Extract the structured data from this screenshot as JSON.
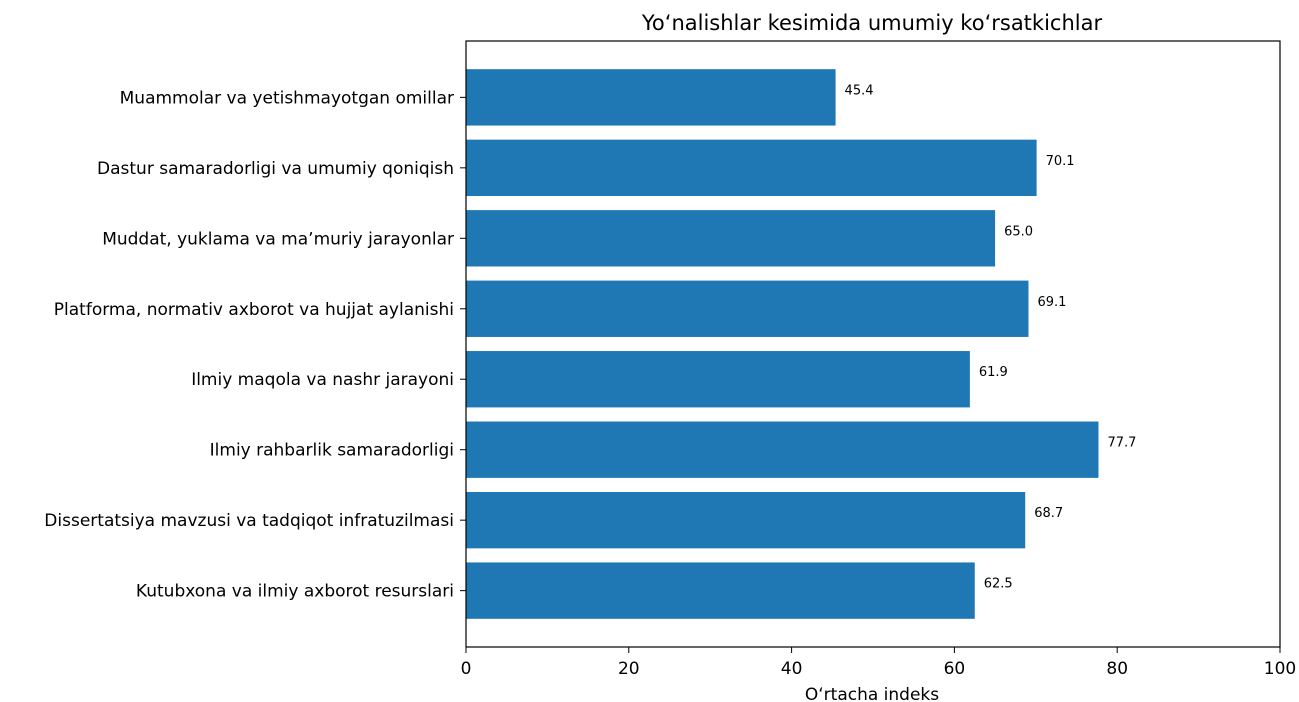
{
  "chart_data": {
    "type": "bar",
    "orientation": "horizontal",
    "title": "Yoʻnalishlar kesimida umumiy koʻrsatkichlar",
    "xlabel": "Oʻrtacha indeks",
    "ylabel": "",
    "xlim": [
      0,
      100
    ],
    "xticks": [
      0,
      20,
      40,
      60,
      80,
      100
    ],
    "grid": false,
    "bar_color": "#1f77b4",
    "categories": [
      "Muammolar va yetishmayotgan omillar",
      "Dastur samaradorligi va umumiy qoniqish",
      "Muddat, yuklama va maʼmuriy jarayonlar",
      "Platforma, normativ axborot va hujjat aylanishi",
      "Ilmiy maqola va nashr jarayoni",
      "Ilmiy rahbarlik samaradorligi",
      "Dissertatsiya mavzusi va tadqiqot infratuzilmasi",
      "Kutubxona va ilmiy axborot resurslari"
    ],
    "values": [
      45.4,
      70.1,
      65.0,
      69.1,
      61.9,
      77.7,
      68.7,
      62.5
    ],
    "value_labels": [
      "45.4",
      "70.1",
      "65.0",
      "69.1",
      "61.9",
      "77.7",
      "68.7",
      "62.5"
    ]
  }
}
